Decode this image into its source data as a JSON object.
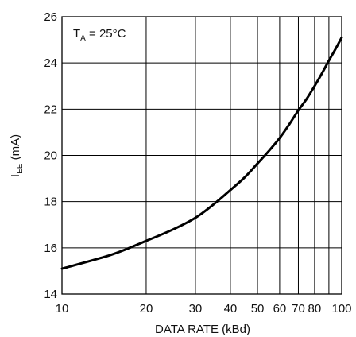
{
  "chart_data": {
    "type": "line",
    "x_scale": "log",
    "xlim": [
      10,
      100
    ],
    "ylim": [
      14,
      26
    ],
    "xlabel": "DATA RATE (kBd)",
    "ylabel": {
      "main": "I",
      "sub": "EE",
      "unit": " (mA)"
    },
    "annotation": {
      "main": "T",
      "sub": "A",
      "rest": " = 25°C"
    },
    "x_ticks": [
      10,
      20,
      30,
      40,
      50,
      60,
      70,
      80,
      100
    ],
    "x_tick_labels": [
      "10",
      "20",
      "30",
      "40",
      "50",
      "60",
      "70",
      "80",
      "100"
    ],
    "x_grid": [
      10,
      20,
      30,
      40,
      50,
      60,
      70,
      80,
      90,
      100
    ],
    "y_ticks": [
      14,
      16,
      18,
      20,
      22,
      24,
      26
    ],
    "y_tick_labels": [
      "14",
      "16",
      "18",
      "20",
      "22",
      "24",
      "26"
    ],
    "grid": true,
    "series": [
      {
        "x": [
          10,
          15,
          20,
          25,
          30,
          35,
          40,
          45,
          50,
          55,
          60,
          65,
          70,
          75,
          80,
          85,
          90,
          95,
          100
        ],
        "y": [
          15.1,
          15.7,
          16.3,
          16.8,
          17.3,
          17.9,
          18.5,
          19.05,
          19.65,
          20.2,
          20.75,
          21.35,
          21.95,
          22.45,
          23.0,
          23.55,
          24.1,
          24.6,
          25.1
        ]
      }
    ]
  }
}
